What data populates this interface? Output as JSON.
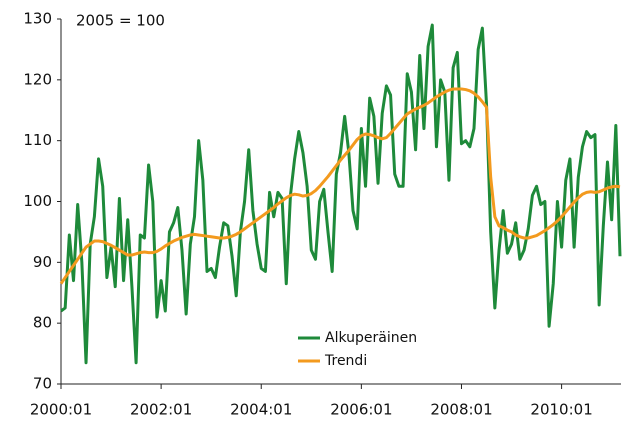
{
  "chart_data": {
    "type": "line",
    "annotation": "2005 = 100",
    "categories": [
      "2000:01",
      null,
      null,
      null,
      null,
      null,
      null,
      null,
      null,
      null,
      null,
      null,
      null,
      null,
      null,
      null,
      null,
      null,
      null,
      null,
      null,
      null,
      null,
      null,
      "2002:01",
      null,
      null,
      null,
      null,
      null,
      null,
      null,
      null,
      null,
      null,
      null,
      null,
      null,
      null,
      null,
      null,
      null,
      null,
      null,
      null,
      null,
      null,
      null,
      "2004:01",
      null,
      null,
      null,
      null,
      null,
      null,
      null,
      null,
      null,
      null,
      null,
      null,
      null,
      null,
      null,
      null,
      null,
      null,
      null,
      null,
      null,
      null,
      null,
      "2006:01",
      null,
      null,
      null,
      null,
      null,
      null,
      null,
      null,
      null,
      null,
      null,
      null,
      null,
      null,
      null,
      null,
      null,
      null,
      null,
      null,
      null,
      null,
      null,
      "2008:01",
      null,
      null,
      null,
      null,
      null,
      null,
      null,
      null,
      null,
      null,
      null,
      null,
      null,
      null,
      null,
      null,
      null,
      null,
      null,
      null,
      null,
      null,
      null,
      "2010:01",
      null,
      null,
      null,
      null,
      null,
      null,
      null,
      null,
      null,
      null,
      null,
      null,
      null,
      null
    ],
    "series": [
      {
        "name": "Alkuperäinen",
        "color": "#1e8a3a",
        "values": [
          82,
          82.5,
          94.5,
          87,
          99.5,
          90,
          73.5,
          93,
          97.5,
          107,
          102.5,
          87.5,
          92.5,
          86,
          100.5,
          87,
          97,
          86,
          73.5,
          94.5,
          94,
          106,
          100,
          81,
          87,
          82,
          95,
          96.5,
          99,
          92,
          81.5,
          93,
          97.5,
          110,
          103.5,
          88.5,
          89,
          87.5,
          92.5,
          96.5,
          96,
          91,
          84.5,
          95,
          100,
          108.5,
          98.5,
          93,
          89,
          88.5,
          101.5,
          97.5,
          101.5,
          100.5,
          86.5,
          101,
          107,
          111.5,
          108,
          102.5,
          92,
          90.5,
          100,
          102,
          95,
          88.5,
          104.5,
          108,
          114,
          108,
          98.5,
          95.5,
          112,
          102.5,
          117,
          114,
          103,
          114.5,
          119,
          117.5,
          104.5,
          102.5,
          102.5,
          121,
          118,
          108.5,
          124,
          112,
          125.5,
          129,
          109,
          120,
          118,
          103.5,
          122,
          124.5,
          109.5,
          110,
          109,
          112,
          125,
          128.5,
          116,
          95,
          82.5,
          92,
          98.5,
          91.5,
          93,
          96.5,
          90.5,
          92,
          95.5,
          101,
          102.5,
          99.5,
          100,
          79.5,
          86.5,
          100,
          92.5,
          103.5,
          107,
          92.5,
          104,
          109,
          111.5,
          110.5,
          111,
          83,
          96,
          106.5,
          97,
          112.5,
          91
        ]
      },
      {
        "name": "Trendi",
        "color": "#f39a1e",
        "values": [
          86.5,
          87.5,
          88.5,
          89.5,
          90.5,
          91.5,
          92.5,
          93,
          93.5,
          93.5,
          93.4,
          93.1,
          92.8,
          92.4,
          92,
          91.6,
          91.2,
          91.2,
          91.4,
          91.6,
          91.7,
          91.6,
          91.6,
          91.8,
          92.2,
          92.7,
          93.1,
          93.5,
          93.8,
          94.1,
          94.3,
          94.5,
          94.6,
          94.5,
          94.4,
          94.3,
          94.2,
          94.1,
          94,
          94,
          94.1,
          94.3,
          94.6,
          95,
          95.5,
          96,
          96.5,
          97,
          97.5,
          98,
          98.5,
          99,
          99.6,
          100.1,
          100.6,
          101,
          101.2,
          101.1,
          100.9,
          101,
          101.3,
          101.8,
          102.5,
          103.3,
          104.1,
          105,
          105.9,
          106.8,
          107.6,
          108.4,
          109.3,
          110.2,
          110.8,
          111.1,
          111,
          110.8,
          110.5,
          110.3,
          110.5,
          111.2,
          112,
          112.8,
          113.6,
          114.4,
          114.8,
          115.2,
          115.5,
          115.8,
          116.2,
          116.7,
          117.2,
          117.6,
          118,
          118.3,
          118.5,
          118.5,
          118.5,
          118.4,
          118.2,
          117.8,
          117.2,
          116.4,
          115.5,
          104,
          97.5,
          96,
          95.7,
          95.3,
          95,
          94.5,
          94.2,
          94,
          94,
          94.2,
          94.4,
          94.8,
          95.2,
          95.7,
          96.2,
          96.8,
          97.5,
          98.3,
          99.1,
          99.9,
          100.6,
          101.2,
          101.5,
          101.6,
          101.5,
          101.6,
          101.9,
          102.2,
          102.4,
          102.5,
          102.4
        ]
      }
    ],
    "ylim": [
      70,
      130
    ],
    "yticks": [
      70,
      80,
      90,
      100,
      110,
      120,
      130
    ],
    "grid": false
  }
}
